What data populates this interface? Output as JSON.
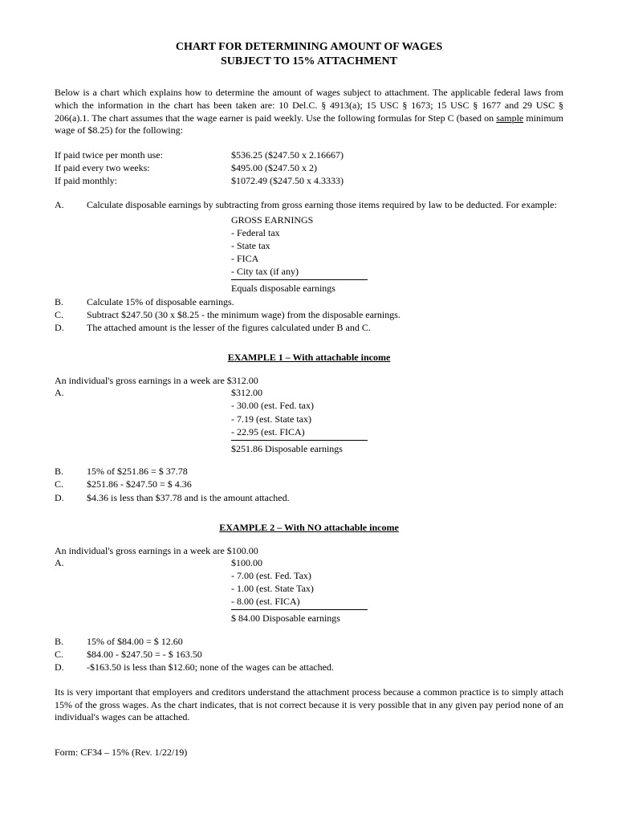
{
  "title_line1": "CHART FOR DETERMINING AMOUNT OF WAGES",
  "title_line2": "SUBJECT TO 15% ATTACHMENT",
  "intro_part1": "Below is a chart which explains how to determine the amount of wages subject to attachment. The applicable federal laws from which the information in the chart has been taken are: 10 Del.C. § 4913(a); 15 USC § 1673; 15 USC    § 1677 and 29 USC § 206(a).1.  The chart assumes that the wage earner is paid weekly. Use the following formulas for Step C (based on ",
  "intro_sample": "sample",
  "intro_part2": " minimum wage of $8.25) for the following:",
  "formulas": [
    {
      "label": "If paid twice per month use:",
      "value": "$536.25 ($247.50 x 2.16667)"
    },
    {
      "label": "If paid every two weeks:",
      "value": "$495.00 ($247.50 x 2)"
    },
    {
      "label": "If paid monthly:",
      "value": "$1072.49 ($247.50 x 4.3333)"
    }
  ],
  "stepA_letter": "A.",
  "stepA_text": "Calculate disposable earnings by subtracting from gross earning those items required by law to be deducted. For example:",
  "deductions": {
    "header": "GROSS EARNINGS",
    "items": [
      "-  Federal tax",
      "-  State tax",
      "-  FICA",
      "-  City tax (if any)"
    ],
    "result": "Equals disposable earnings"
  },
  "stepB": {
    "letter": "B.",
    "text": "Calculate 15% of disposable earnings."
  },
  "stepC": {
    "letter": "C.",
    "text": "Subtract $247.50 (30 x $8.25 - the minimum wage) from the disposable earnings."
  },
  "stepD": {
    "letter": "D.",
    "text": "The attached amount is the lesser of the figures calculated under B and C."
  },
  "ex1": {
    "title": "EXAMPLE 1 – With attachable income",
    "intro": "An individual's gross earnings in a week are $312.00",
    "A_letter": "A.",
    "A_value": "$312.00",
    "items": [
      "-   30.00 (est. Fed. tax)",
      "-     7.19 (est. State tax)",
      "-   22.95 (est. FICA)"
    ],
    "result": "$251.86 Disposable earnings",
    "B": {
      "letter": "B.",
      "text": "15% of $251.86    =   $  37.78"
    },
    "C": {
      "letter": "C.",
      "text": "$251.86 - $247.50 =   $    4.36"
    },
    "D": {
      "letter": "D.",
      "text": "$4.36 is less than $37.78 and is the amount attached."
    }
  },
  "ex2": {
    "title": "EXAMPLE 2 – With NO attachable income",
    "intro": "An individual's gross earnings in a week are $100.00",
    "A_letter": "A.",
    "A_value": "$100.00",
    "items": [
      "-     7.00 (est. Fed. Tax)",
      "-     1.00 (est. State Tax)",
      "-     8.00 (est. FICA)"
    ],
    "result": "$ 84.00 Disposable earnings",
    "B": {
      "letter": "B.",
      "text": "15% of $84.00      =    $   12.60"
    },
    "C": {
      "letter": "C.",
      "text": "$84.00 - $247.50  =  - $ 163.50"
    },
    "D": {
      "letter": "D.",
      "text": "-$163.50 is less than $12.60; none of the wages can be attached."
    }
  },
  "closing": "Its is very important that employers and creditors understand the attachment process because a common practice is to simply attach 15% of the gross wages. As the chart indicates, that is not correct because it is very possible that in any given pay period none of an individual's wages can be attached.",
  "footer": "Form: CF34 – 15%   (Rev. 1/22/19)"
}
